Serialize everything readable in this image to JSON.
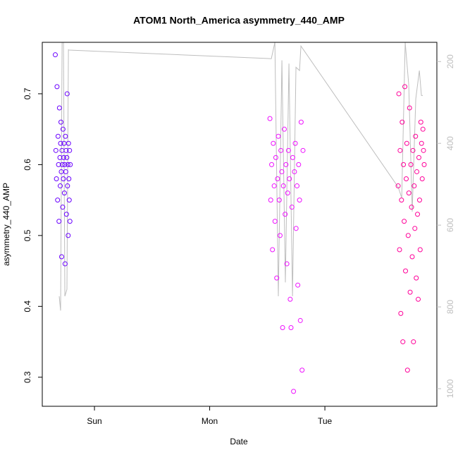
{
  "chart_data": {
    "type": "scatter",
    "title": "ATOM1 North_America asymmetry_440_AMP",
    "x_label": "Date",
    "y_label": "asymmetry_440_AMP",
    "xlim": [
      -0.453,
      2.972
    ],
    "xticks": [
      {
        "value": 0,
        "label": "Sun"
      },
      {
        "value": 1,
        "label": "Mon"
      },
      {
        "value": 2,
        "label": "Tue"
      }
    ],
    "ylim": [
      0.259,
      0.7726
    ],
    "yticks": [
      0.3,
      0.4,
      0.5,
      0.6,
      0.7
    ],
    "y2lim": [
      1043,
      153
    ],
    "y2ticks": [
      200,
      400,
      600,
      800,
      1000
    ],
    "series": [
      {
        "type": "line",
        "axis": "y2",
        "color": "#bebebe",
        "x": [
          -0.306,
          -0.294,
          -0.281,
          -0.269,
          -0.257,
          -0.239,
          -0.226,
          -0.22,
          1.535,
          1.566,
          1.596,
          1.627,
          1.657,
          1.688,
          1.719,
          1.749,
          1.78,
          1.792,
          2.636,
          2.667,
          2.697,
          2.728,
          2.758,
          2.789,
          2.82,
          2.838,
          2.85
        ],
        "values": [
          774,
          809,
          153,
          153,
          774,
          757,
          171,
          172,
          193,
          153,
          774,
          197,
          740,
          205,
          774,
          214,
          222,
          162,
          507,
          533,
          153,
          257,
          567,
          291,
          222,
          283,
          283
        ]
      },
      {
        "type": "scatter",
        "color": "#6a00ff",
        "x": [
          -0.34,
          -0.335,
          -0.33,
          -0.325,
          -0.32,
          -0.316,
          -0.312,
          -0.308,
          -0.304,
          -0.3,
          -0.297,
          -0.294,
          -0.291,
          -0.288,
          -0.285,
          -0.282,
          -0.279,
          -0.276,
          -0.273,
          -0.27,
          -0.267,
          -0.264,
          -0.261,
          -0.258,
          -0.255,
          -0.252,
          -0.249,
          -0.246,
          -0.243,
          -0.24,
          -0.237,
          -0.234,
          -0.231,
          -0.228,
          -0.225,
          -0.222,
          -0.219,
          -0.216,
          -0.213,
          -0.21
        ],
        "values": [
          0.755,
          0.62,
          0.58,
          0.71,
          0.55,
          0.64,
          0.6,
          0.52,
          0.68,
          0.61,
          0.57,
          0.63,
          0.66,
          0.59,
          0.47,
          0.62,
          0.6,
          0.54,
          0.65,
          0.58,
          0.61,
          0.63,
          0.56,
          0.6,
          0.46,
          0.64,
          0.59,
          0.62,
          0.53,
          0.61,
          0.7,
          0.57,
          0.6,
          0.5,
          0.63,
          0.58,
          0.55,
          0.62,
          0.52,
          0.6
        ]
      },
      {
        "type": "scatter",
        "color": "#ee11ff",
        "x": [
          1.523,
          1.53,
          1.538,
          1.545,
          1.552,
          1.56,
          1.567,
          1.574,
          1.582,
          1.589,
          1.596,
          1.604,
          1.611,
          1.618,
          1.626,
          1.633,
          1.64,
          1.648,
          1.655,
          1.662,
          1.67,
          1.677,
          1.684,
          1.692,
          1.699,
          1.706,
          1.714,
          1.721,
          1.728,
          1.736,
          1.743,
          1.75,
          1.758,
          1.765,
          1.772,
          1.78,
          1.787,
          1.794,
          1.802,
          1.81
        ],
        "values": [
          0.665,
          0.55,
          0.6,
          0.48,
          0.63,
          0.57,
          0.52,
          0.61,
          0.44,
          0.58,
          0.64,
          0.55,
          0.5,
          0.62,
          0.59,
          0.37,
          0.57,
          0.65,
          0.53,
          0.6,
          0.46,
          0.56,
          0.62,
          0.58,
          0.41,
          0.37,
          0.54,
          0.61,
          0.28,
          0.59,
          0.63,
          0.51,
          0.57,
          0.43,
          0.6,
          0.55,
          0.38,
          0.66,
          0.31,
          0.62
        ]
      },
      {
        "type": "scatter",
        "color": "#ff0099",
        "x": [
          2.636,
          2.642,
          2.648,
          2.653,
          2.659,
          2.665,
          2.671,
          2.677,
          2.682,
          2.688,
          2.694,
          2.7,
          2.706,
          2.711,
          2.717,
          2.723,
          2.729,
          2.735,
          2.74,
          2.746,
          2.752,
          2.758,
          2.764,
          2.769,
          2.775,
          2.781,
          2.787,
          2.793,
          2.798,
          2.804,
          2.81,
          2.816,
          2.822,
          2.827,
          2.833,
          2.839,
          2.845,
          2.851,
          2.856,
          2.862
        ],
        "values": [
          0.57,
          0.7,
          0.48,
          0.62,
          0.39,
          0.55,
          0.66,
          0.35,
          0.6,
          0.52,
          0.71,
          0.45,
          0.58,
          0.63,
          0.31,
          0.5,
          0.56,
          0.68,
          0.42,
          0.6,
          0.54,
          0.47,
          0.62,
          0.35,
          0.57,
          0.51,
          0.64,
          0.44,
          0.59,
          0.53,
          0.41,
          0.61,
          0.55,
          0.48,
          0.66,
          0.63,
          0.58,
          0.65,
          0.62,
          0.6
        ]
      }
    ]
  }
}
